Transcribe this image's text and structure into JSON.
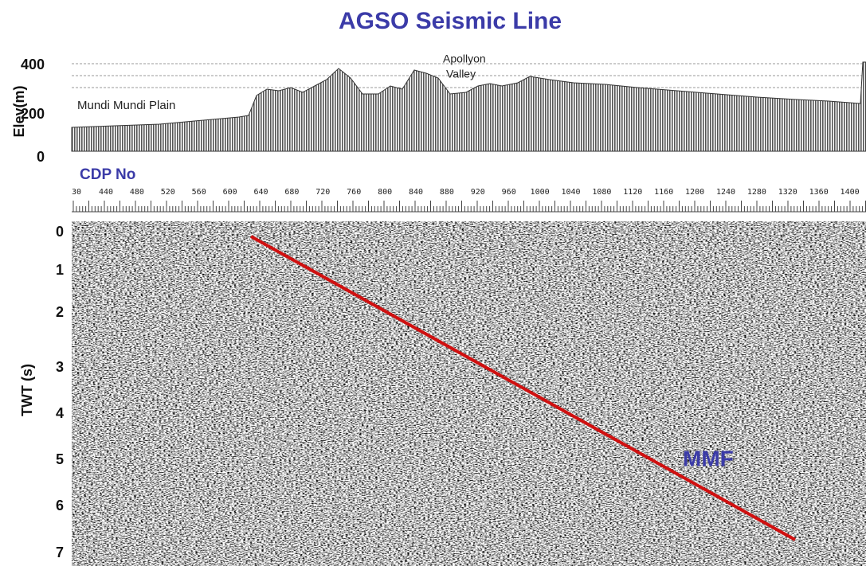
{
  "title": "AGSO Seismic Line",
  "elevation_panel": {
    "axis_label": "Elev(m)",
    "ticks": [
      "400",
      "200",
      "0"
    ],
    "annotations": {
      "plain": "Mundi Mundi Plain",
      "valley_line1": "Apollyon",
      "valley_line2": "Valley"
    }
  },
  "cdp_axis": {
    "label": "CDP No",
    "ticks": [
      "30",
      "440",
      "480",
      "520",
      "560",
      "600",
      "640",
      "680",
      "720",
      "760",
      "800",
      "840",
      "880",
      "920",
      "960",
      "1000",
      "1040",
      "1080",
      "1120",
      "1160",
      "1200",
      "1240",
      "1280",
      "1320",
      "1360",
      "1400"
    ]
  },
  "seismic_panel": {
    "axis_label": "TWT (s)",
    "ticks": [
      "0",
      "1",
      "2",
      "3",
      "4",
      "5",
      "6",
      "7"
    ],
    "fault_label": "MMF"
  }
}
